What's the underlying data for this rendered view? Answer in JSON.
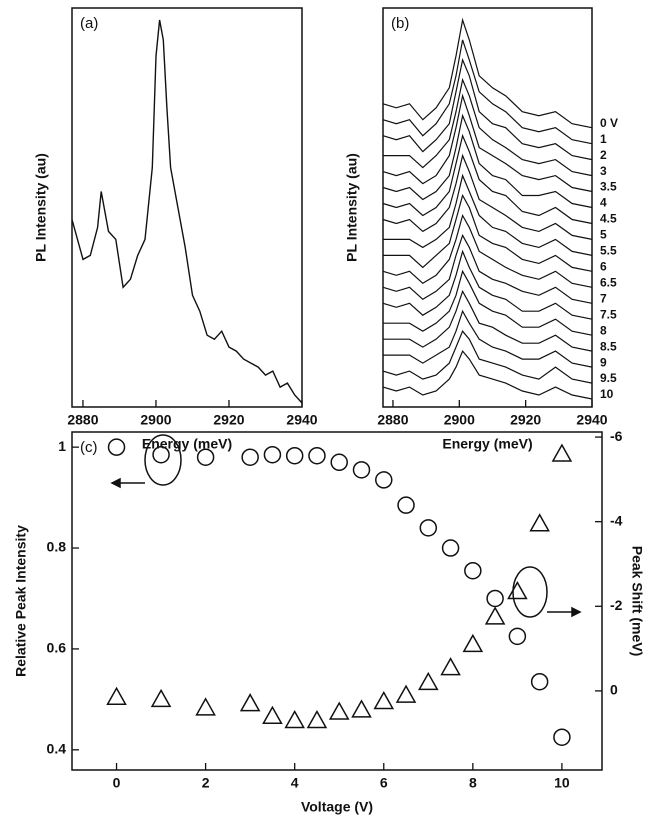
{
  "chart_data": [
    {
      "type": "line",
      "annotation": "(a)",
      "xlabel": "Energy (meV)",
      "ylabel": "PL Intensity (au)",
      "xlim": [
        2877,
        2940
      ],
      "xticks": [
        2880,
        2900,
        2920,
        2940
      ],
      "ylim": [
        0,
        100
      ],
      "color": "#111111",
      "x": [
        2877,
        2880,
        2882,
        2884,
        2885,
        2887,
        2889,
        2891,
        2893,
        2895,
        2897,
        2899,
        2900,
        2901,
        2902,
        2903,
        2904,
        2906,
        2908,
        2910,
        2912,
        2914,
        2916,
        2918,
        2920,
        2922,
        2924,
        2926,
        2928,
        2930,
        2932,
        2934,
        2936,
        2938,
        2940
      ],
      "series": [
        {
          "values": [
            47,
            37,
            38,
            45,
            54,
            44,
            42,
            30,
            32,
            38,
            42,
            60,
            88,
            97,
            92,
            75,
            60,
            50,
            40,
            28,
            24,
            18,
            17,
            19,
            15,
            14,
            12,
            11,
            10,
            8,
            9,
            5,
            6,
            3,
            1
          ]
        }
      ]
    },
    {
      "type": "line",
      "annotation": "(b)",
      "xlabel": "Energy (meV)",
      "ylabel": "PL Intensity (au)",
      "xlim": [
        2877,
        2940
      ],
      "xticks": [
        2880,
        2900,
        2920,
        2940
      ],
      "ylim": [
        0,
        100
      ],
      "color": "#111111",
      "x": [
        2877,
        2881,
        2885,
        2889,
        2893,
        2897,
        2899,
        2901,
        2903,
        2906,
        2910,
        2914,
        2919,
        2924,
        2929,
        2934,
        2940
      ],
      "series": [
        {
          "name": "0 V",
          "values": [
            76,
            75,
            76,
            72,
            75,
            80,
            88,
            97,
            92,
            83,
            80,
            78,
            74,
            73,
            74,
            71,
            70
          ]
        },
        {
          "name": "1",
          "values": [
            72,
            71,
            72,
            68,
            71,
            76,
            83,
            92,
            87,
            79,
            76,
            74,
            70,
            69,
            70,
            67,
            66
          ]
        },
        {
          "name": "2",
          "values": [
            68,
            67,
            68,
            64,
            67,
            71,
            79,
            87,
            83,
            74,
            71,
            70,
            66,
            65,
            66,
            63,
            62
          ]
        },
        {
          "name": "3",
          "values": [
            63,
            63,
            63,
            60,
            63,
            67,
            74,
            82,
            78,
            70,
            67,
            65,
            62,
            61,
            62,
            59,
            58
          ]
        },
        {
          "name": "3.5",
          "values": [
            59,
            58,
            59,
            56,
            58,
            63,
            70,
            78,
            73,
            65,
            63,
            61,
            58,
            57,
            58,
            55,
            54
          ]
        },
        {
          "name": "4",
          "values": [
            55,
            54,
            55,
            52,
            54,
            58,
            65,
            73,
            69,
            61,
            58,
            57,
            53,
            53,
            54,
            51,
            50
          ]
        },
        {
          "name": "4.5",
          "values": [
            51,
            50,
            51,
            48,
            50,
            54,
            61,
            68,
            64,
            57,
            54,
            53,
            49,
            48,
            50,
            47,
            46
          ]
        },
        {
          "name": "5",
          "values": [
            47,
            46,
            47,
            44,
            46,
            50,
            56,
            63,
            59,
            52,
            50,
            48,
            45,
            44,
            46,
            43,
            42
          ]
        },
        {
          "name": "5.5",
          "values": [
            42,
            42,
            42,
            40,
            42,
            45,
            51,
            58,
            54,
            48,
            45,
            44,
            41,
            40,
            42,
            39,
            38
          ]
        },
        {
          "name": "6",
          "values": [
            38,
            38,
            38,
            35,
            38,
            41,
            47,
            53,
            50,
            43,
            41,
            40,
            37,
            36,
            38,
            35,
            34
          ]
        },
        {
          "name": "6.5",
          "values": [
            34,
            33,
            34,
            31,
            33,
            37,
            42,
            48,
            45,
            39,
            37,
            35,
            33,
            32,
            34,
            31,
            30
          ]
        },
        {
          "name": "7",
          "values": [
            30,
            29,
            30,
            27,
            29,
            32,
            38,
            43,
            40,
            34,
            32,
            31,
            29,
            28,
            30,
            27,
            26
          ]
        },
        {
          "name": "7.5",
          "values": [
            26,
            25,
            26,
            23,
            25,
            28,
            33,
            39,
            35,
            30,
            28,
            27,
            24,
            24,
            26,
            23,
            22
          ]
        },
        {
          "name": "8",
          "values": [
            21,
            21,
            21,
            19,
            21,
            24,
            28,
            34,
            31,
            26,
            24,
            23,
            20,
            20,
            22,
            19,
            18
          ]
        },
        {
          "name": "8.5",
          "values": [
            17,
            17,
            17,
            15,
            17,
            20,
            24,
            29,
            26,
            21,
            20,
            18,
            16,
            16,
            18,
            15,
            14
          ]
        },
        {
          "name": "9",
          "values": [
            13,
            13,
            13,
            11,
            13,
            15,
            19,
            24,
            21,
            17,
            15,
            14,
            12,
            12,
            14,
            11,
            10
          ]
        },
        {
          "name": "9.5",
          "values": [
            9,
            8,
            9,
            7,
            8,
            11,
            15,
            19,
            17,
            12,
            11,
            10,
            8,
            7,
            10,
            7,
            6
          ]
        },
        {
          "name": "10",
          "values": [
            5,
            4,
            5,
            3,
            4,
            7,
            10,
            14,
            12,
            8,
            7,
            6,
            4,
            3,
            5,
            3,
            2
          ]
        }
      ]
    },
    {
      "type": "scatter",
      "annotation": "(c)",
      "xlabel": "Voltage (V)",
      "ylabel": "Relative Peak Intensity",
      "y2label": "Peak Shift (meV)",
      "xlim": [
        -1,
        10.9
      ],
      "xticks": [
        0,
        2,
        4,
        6,
        8,
        10
      ],
      "ylim": [
        0.36,
        1.03
      ],
      "yticks": [
        0.4,
        0.6,
        0.8,
        1.0
      ],
      "y2lim": [
        1.87,
        -6.12
      ],
      "y2ticks": [
        -6,
        -4,
        -2,
        0
      ],
      "x": [
        0,
        1,
        2,
        3,
        3.5,
        4,
        4.5,
        5,
        5.5,
        6,
        6.5,
        7,
        7.5,
        8,
        8.5,
        9,
        9.5,
        10
      ],
      "series": [
        {
          "marker": "circle",
          "color": "#111111",
          "values": [
            1.0,
            0.985,
            0.98,
            0.98,
            0.985,
            0.983,
            0.983,
            0.97,
            0.955,
            0.935,
            0.885,
            0.84,
            0.8,
            0.755,
            0.7,
            0.625,
            0.535,
            0.425
          ]
        },
        {
          "marker": "triangle",
          "color": "#111111",
          "axis": "y2",
          "values": [
            0.15,
            0.2,
            0.4,
            0.3,
            0.6,
            0.7,
            0.7,
            0.5,
            0.45,
            0.25,
            0.1,
            -0.2,
            -0.55,
            -1.1,
            -1.75,
            -2.35,
            -3.95,
            -5.6
          ]
        }
      ]
    }
  ]
}
